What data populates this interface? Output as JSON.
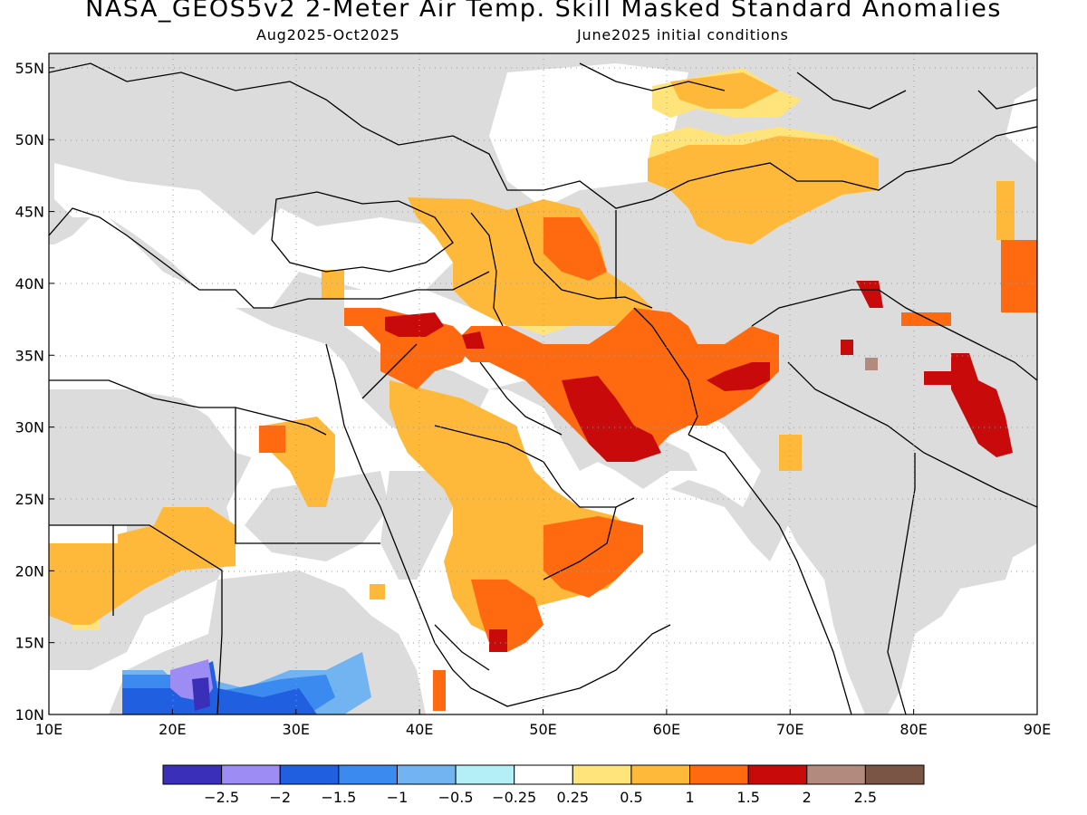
{
  "title": "NASA_GEOS5v2 2-Meter Air Temp. Skill Masked Standard Anomalies",
  "valid_period": "Aug2025-Oct2025",
  "init_conditions": "June2025 initial conditions",
  "map": {
    "lon_range": [
      10,
      90
    ],
    "lat_range": [
      10,
      56
    ],
    "lat_ticks": [
      "10N",
      "15N",
      "20N",
      "25N",
      "30N",
      "35N",
      "40N",
      "45N",
      "50N",
      "55N"
    ],
    "lon_ticks": [
      "10E",
      "20E",
      "30E",
      "40E",
      "50E",
      "60E",
      "70E",
      "80E",
      "90E"
    ],
    "grid": true,
    "masked_color": "#dcdcdc"
  },
  "legend": {
    "colors": [
      "#3a2fb8",
      "#9e8cf5",
      "#1f5fe0",
      "#3b8af0",
      "#72b4f2",
      "#b4eef6",
      "#ffffff",
      "#ffe47c",
      "#ffb93a",
      "#ff6a10",
      "#c80a0a",
      "#b38a7e",
      "#7a5545"
    ],
    "labels": [
      "-2.5",
      "-2",
      "-1.5",
      "-1",
      "-0.5",
      "-0.25",
      "0.25",
      "0.5",
      "1",
      "1.5",
      "2",
      "2.5"
    ]
  },
  "anomaly_regions": [
    {
      "region": "Arabian Peninsula interior",
      "level": "0.5 to 1",
      "color": "#ffb93a"
    },
    {
      "region": "Iran central / southeast",
      "level": "1 to 2",
      "color": "#ff6a10"
    },
    {
      "region": "Iran southeast core",
      "level": "1.5 to 2",
      "color": "#c80a0a"
    },
    {
      "region": "Kazakhstan / Central Asia",
      "level": "0.25 to 1",
      "color": "#ffb93a"
    },
    {
      "region": "Tibet southern",
      "level": "1.5 to 2",
      "color": "#c80a0a"
    },
    {
      "region": "Sahel / Sudan east",
      "level": "-1.5 to -2.5",
      "color": "#1f5fe0"
    }
  ]
}
